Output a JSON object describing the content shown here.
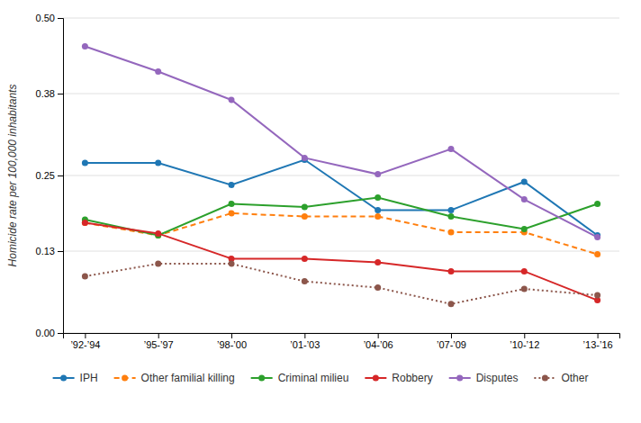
{
  "chart_data": {
    "type": "line",
    "y_label": "Homicide rate per 100,000 inhabitants",
    "categories": [
      "’92-’94",
      "’95-’97",
      "’98-’00",
      "’01-’03",
      "’04-’06",
      "’07-’09",
      "’10-’12",
      "’13-’16"
    ],
    "series": [
      {
        "name": "IPH",
        "values": [
          0.27,
          0.27,
          0.235,
          0.275,
          0.195,
          0.195,
          0.24,
          0.155
        ],
        "line_style": "solid",
        "marker": "circle"
      },
      {
        "name": "Other familial killing",
        "values": [
          0.175,
          0.155,
          0.19,
          0.185,
          0.185,
          0.16,
          0.16,
          0.125
        ],
        "line_style": "dashed",
        "marker": "circle"
      },
      {
        "name": "Criminal milieu",
        "values": [
          0.18,
          0.155,
          0.205,
          0.2,
          0.215,
          0.185,
          0.165,
          0.205
        ],
        "line_style": "solid",
        "marker": "circle"
      },
      {
        "name": "Robbery",
        "values": [
          0.175,
          0.158,
          0.118,
          0.118,
          0.112,
          0.098,
          0.098,
          0.052
        ],
        "line_style": "solid",
        "marker": "circle"
      },
      {
        "name": "Disputes",
        "values": [
          0.455,
          0.415,
          0.37,
          0.278,
          0.252,
          0.292,
          0.212,
          0.152
        ],
        "line_style": "solid",
        "marker": "circle"
      },
      {
        "name": "Other",
        "values": [
          0.09,
          0.11,
          0.11,
          0.082,
          0.072,
          0.046,
          0.07,
          0.06
        ],
        "line_style": "dotted",
        "marker": "circle"
      }
    ],
    "ylim": [
      0.0,
      0.5
    ],
    "yticks": [
      {
        "value": 0.0,
        "label": "0.00"
      },
      0.13,
      0.25,
      0.38,
      {
        "value": 0.5,
        "label": "0.50"
      }
    ],
    "grid": true,
    "legend": "bottom"
  }
}
